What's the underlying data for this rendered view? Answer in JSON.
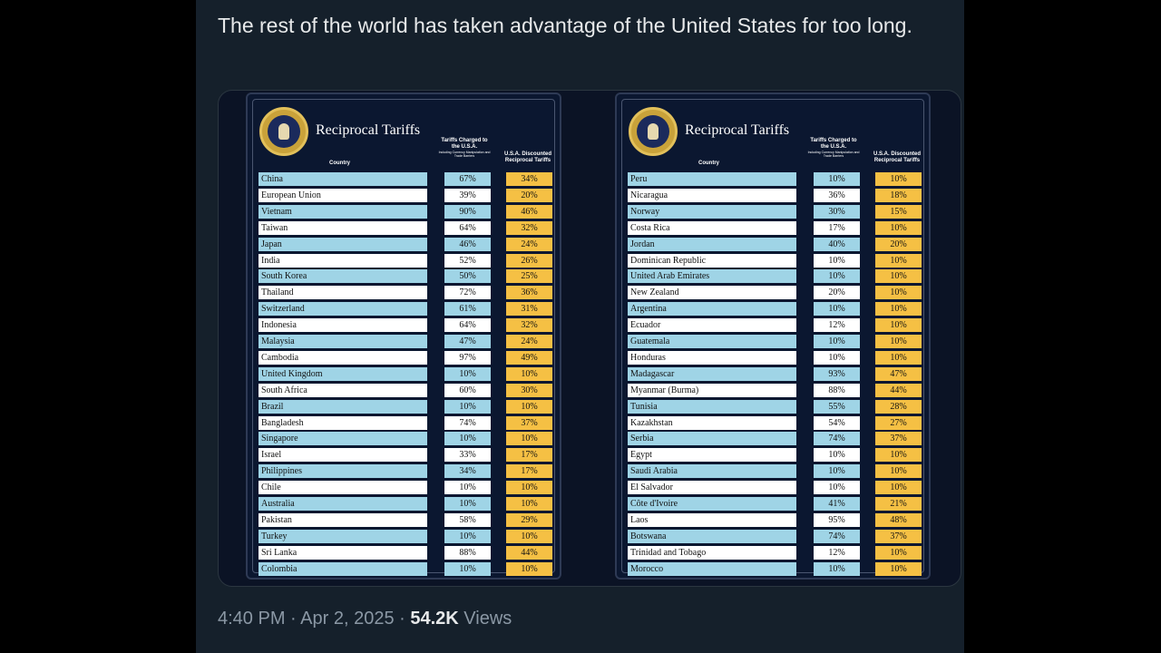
{
  "tweet": {
    "text": "The rest of the world has taken advantage of the United States for too long.",
    "time": "4:40 PM",
    "sep1": " · ",
    "date": "Apr 2, 2025",
    "sep2": " · ",
    "views_count": "54.2K",
    "views_label": " Views"
  },
  "table": {
    "title": "Reciprocal Tariffs",
    "col_country": "Country",
    "col_charged": "Tariffs Charged to the U.S.A.",
    "col_charged_sub": "Including Currency Manipulation and Trade Barriers",
    "col_recip": "U.S.A. Discounted Reciprocal Tariffs"
  },
  "colors": {
    "stripe_blue": "#9fd4e6",
    "stripe_white": "#ffffff",
    "recip_yellow": "#f5c044"
  },
  "left_rows": [
    {
      "country": "China",
      "charged": "67%",
      "recip": "34%"
    },
    {
      "country": "European Union",
      "charged": "39%",
      "recip": "20%"
    },
    {
      "country": "Vietnam",
      "charged": "90%",
      "recip": "46%"
    },
    {
      "country": "Taiwan",
      "charged": "64%",
      "recip": "32%"
    },
    {
      "country": "Japan",
      "charged": "46%",
      "recip": "24%"
    },
    {
      "country": "India",
      "charged": "52%",
      "recip": "26%"
    },
    {
      "country": "South Korea",
      "charged": "50%",
      "recip": "25%"
    },
    {
      "country": "Thailand",
      "charged": "72%",
      "recip": "36%"
    },
    {
      "country": "Switzerland",
      "charged": "61%",
      "recip": "31%"
    },
    {
      "country": "Indonesia",
      "charged": "64%",
      "recip": "32%"
    },
    {
      "country": "Malaysia",
      "charged": "47%",
      "recip": "24%"
    },
    {
      "country": "Cambodia",
      "charged": "97%",
      "recip": "49%"
    },
    {
      "country": "United Kingdom",
      "charged": "10%",
      "recip": "10%"
    },
    {
      "country": "South Africa",
      "charged": "60%",
      "recip": "30%"
    },
    {
      "country": "Brazil",
      "charged": "10%",
      "recip": "10%"
    },
    {
      "country": "Bangladesh",
      "charged": "74%",
      "recip": "37%"
    },
    {
      "country": "Singapore",
      "charged": "10%",
      "recip": "10%"
    },
    {
      "country": "Israel",
      "charged": "33%",
      "recip": "17%"
    },
    {
      "country": "Philippines",
      "charged": "34%",
      "recip": "17%"
    },
    {
      "country": "Chile",
      "charged": "10%",
      "recip": "10%"
    },
    {
      "country": "Australia",
      "charged": "10%",
      "recip": "10%"
    },
    {
      "country": "Pakistan",
      "charged": "58%",
      "recip": "29%"
    },
    {
      "country": "Turkey",
      "charged": "10%",
      "recip": "10%"
    },
    {
      "country": "Sri Lanka",
      "charged": "88%",
      "recip": "44%"
    },
    {
      "country": "Colombia",
      "charged": "10%",
      "recip": "10%"
    }
  ],
  "right_rows": [
    {
      "country": "Peru",
      "charged": "10%",
      "recip": "10%"
    },
    {
      "country": "Nicaragua",
      "charged": "36%",
      "recip": "18%"
    },
    {
      "country": "Norway",
      "charged": "30%",
      "recip": "15%"
    },
    {
      "country": "Costa Rica",
      "charged": "17%",
      "recip": "10%"
    },
    {
      "country": "Jordan",
      "charged": "40%",
      "recip": "20%"
    },
    {
      "country": "Dominican Republic",
      "charged": "10%",
      "recip": "10%"
    },
    {
      "country": "United Arab Emirates",
      "charged": "10%",
      "recip": "10%"
    },
    {
      "country": "New Zealand",
      "charged": "20%",
      "recip": "10%"
    },
    {
      "country": "Argentina",
      "charged": "10%",
      "recip": "10%"
    },
    {
      "country": "Ecuador",
      "charged": "12%",
      "recip": "10%"
    },
    {
      "country": "Guatemala",
      "charged": "10%",
      "recip": "10%"
    },
    {
      "country": "Honduras",
      "charged": "10%",
      "recip": "10%"
    },
    {
      "country": "Madagascar",
      "charged": "93%",
      "recip": "47%"
    },
    {
      "country": "Myanmar (Burma)",
      "charged": "88%",
      "recip": "44%"
    },
    {
      "country": "Tunisia",
      "charged": "55%",
      "recip": "28%"
    },
    {
      "country": "Kazakhstan",
      "charged": "54%",
      "recip": "27%"
    },
    {
      "country": "Serbia",
      "charged": "74%",
      "recip": "37%"
    },
    {
      "country": "Egypt",
      "charged": "10%",
      "recip": "10%"
    },
    {
      "country": "Saudi Arabia",
      "charged": "10%",
      "recip": "10%"
    },
    {
      "country": "El Salvador",
      "charged": "10%",
      "recip": "10%"
    },
    {
      "country": "Côte d'Ivoire",
      "charged": "41%",
      "recip": "21%"
    },
    {
      "country": "Laos",
      "charged": "95%",
      "recip": "48%"
    },
    {
      "country": "Botswana",
      "charged": "74%",
      "recip": "37%"
    },
    {
      "country": "Trinidad and Tobago",
      "charged": "12%",
      "recip": "10%"
    },
    {
      "country": "Morocco",
      "charged": "10%",
      "recip": "10%"
    }
  ]
}
